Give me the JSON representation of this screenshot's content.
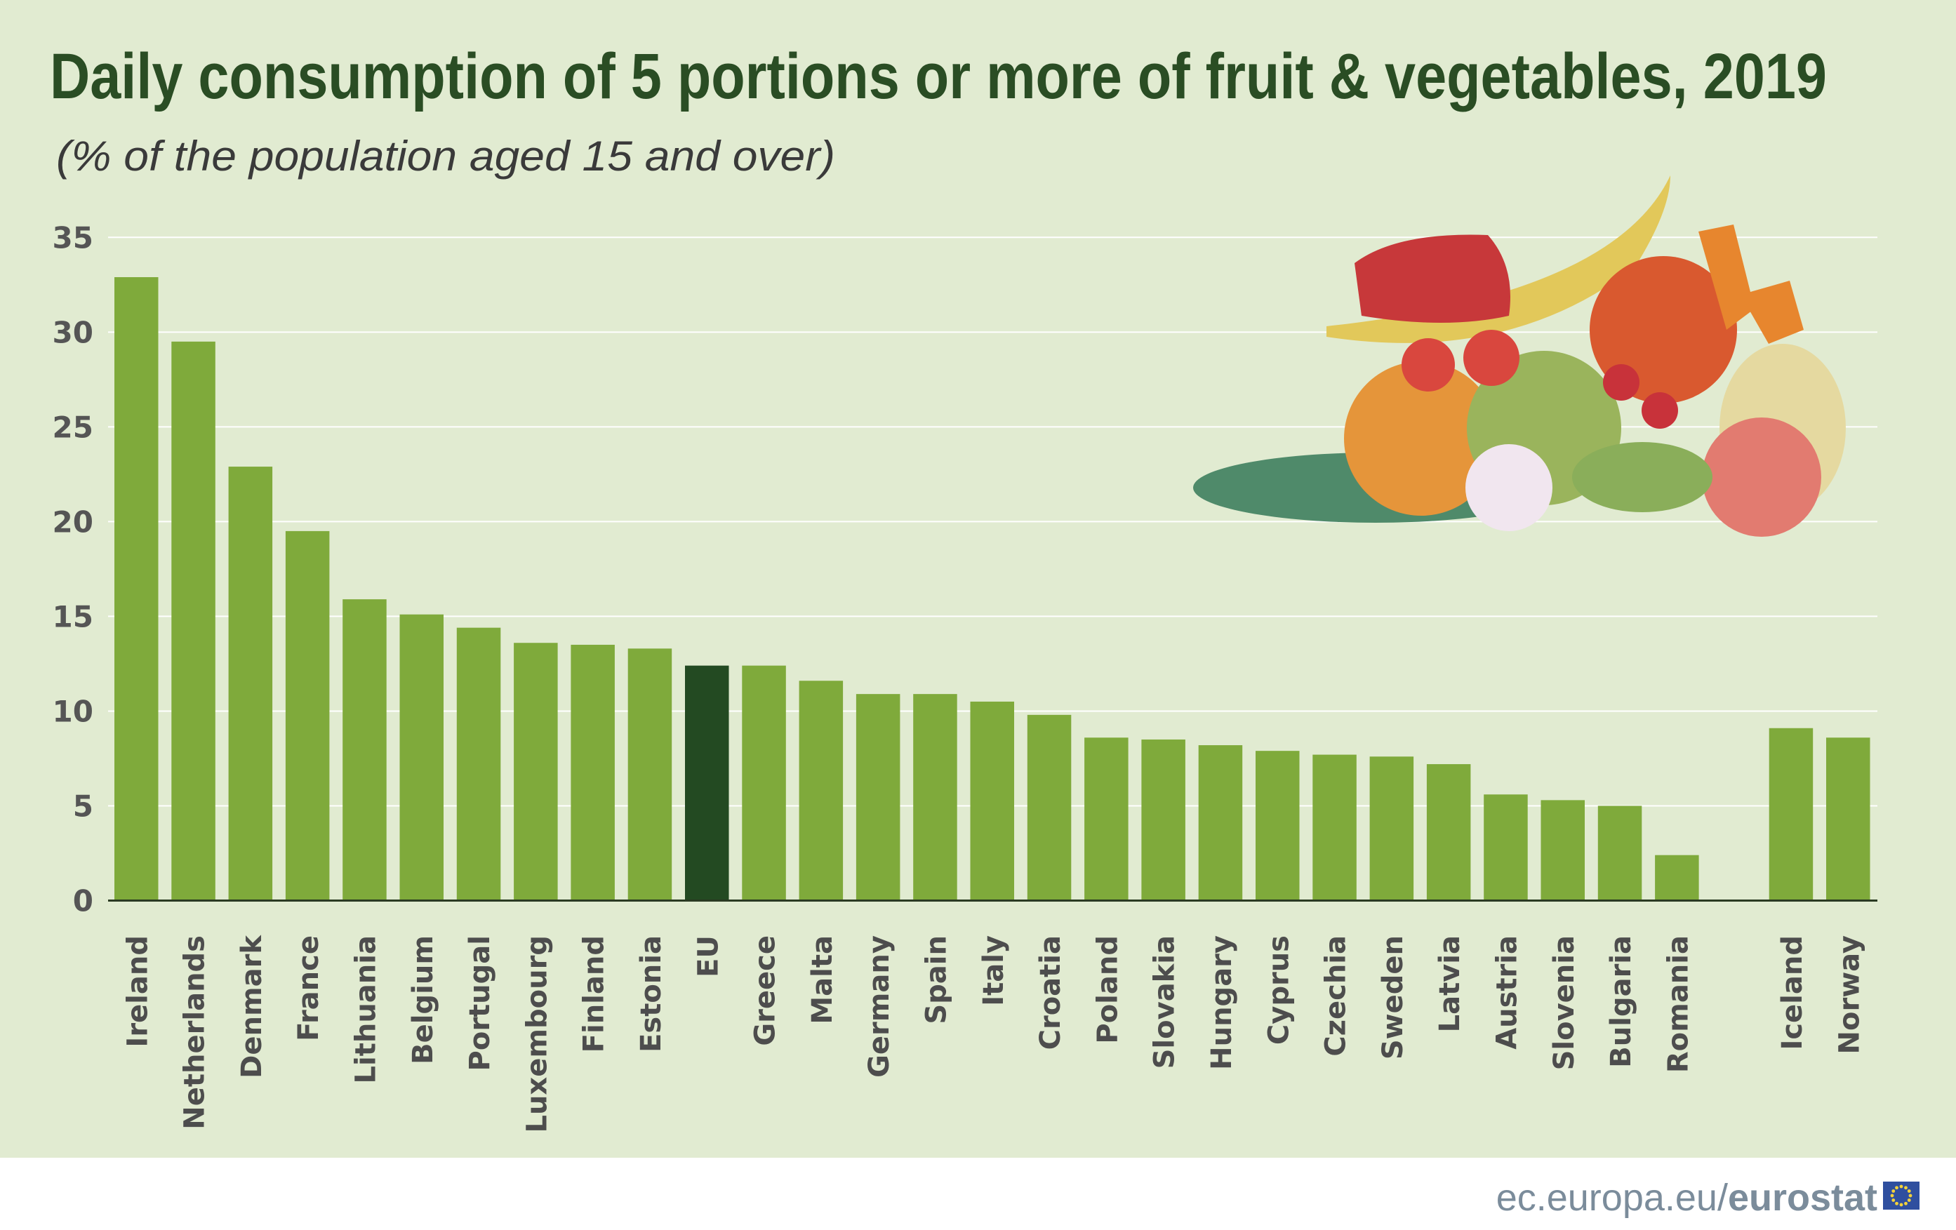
{
  "chart_data": {
    "type": "bar",
    "title": "Daily consumption of 5 portions or more of fruit & vegetables, 2019",
    "subtitle": "(% of  the population aged 15 and over)",
    "xlabel": "",
    "ylabel": "",
    "ylim": [
      0,
      35
    ],
    "yticks": [
      "0",
      "5",
      "10",
      "15",
      "20",
      "25",
      "30",
      "35"
    ],
    "grid": true,
    "legend": "none",
    "categories": [
      "Ireland",
      "Netherlands",
      "Denmark",
      "France",
      "Lithuania",
      "Belgium",
      "Portugal",
      "Luxembourg",
      "Finland",
      "Estonia",
      "EU",
      "Greece",
      "Malta",
      "Germany",
      "Spain",
      "Italy",
      "Croatia",
      "Poland",
      "Slovakia",
      "Hungary",
      "Cyprus",
      "Czechia",
      "Sweden",
      "Latvia",
      "Austria",
      "Slovenia",
      "Bulgaria",
      "Romania",
      "",
      "Iceland",
      "Norway"
    ],
    "values": [
      32.9,
      29.5,
      22.9,
      19.5,
      15.9,
      15.1,
      14.4,
      13.6,
      13.5,
      13.3,
      12.4,
      12.4,
      11.6,
      10.9,
      10.9,
      10.5,
      9.8,
      8.6,
      8.5,
      8.2,
      7.9,
      7.7,
      7.6,
      7.2,
      5.6,
      5.3,
      5.0,
      2.4,
      null,
      9.1,
      8.6
    ],
    "colors": {
      "bar": "#7faa3b",
      "highlight": "#234a22",
      "highlight_category": "EU",
      "title": "#2a4d24",
      "axis_text": "#555555",
      "background": "#e1ebd1"
    }
  },
  "footer": {
    "site": "ec.europa.eu/",
    "brand": "eurostat",
    "logo_icon": "eu-flag-icon"
  },
  "illustration": "fruit-and-vegetables"
}
